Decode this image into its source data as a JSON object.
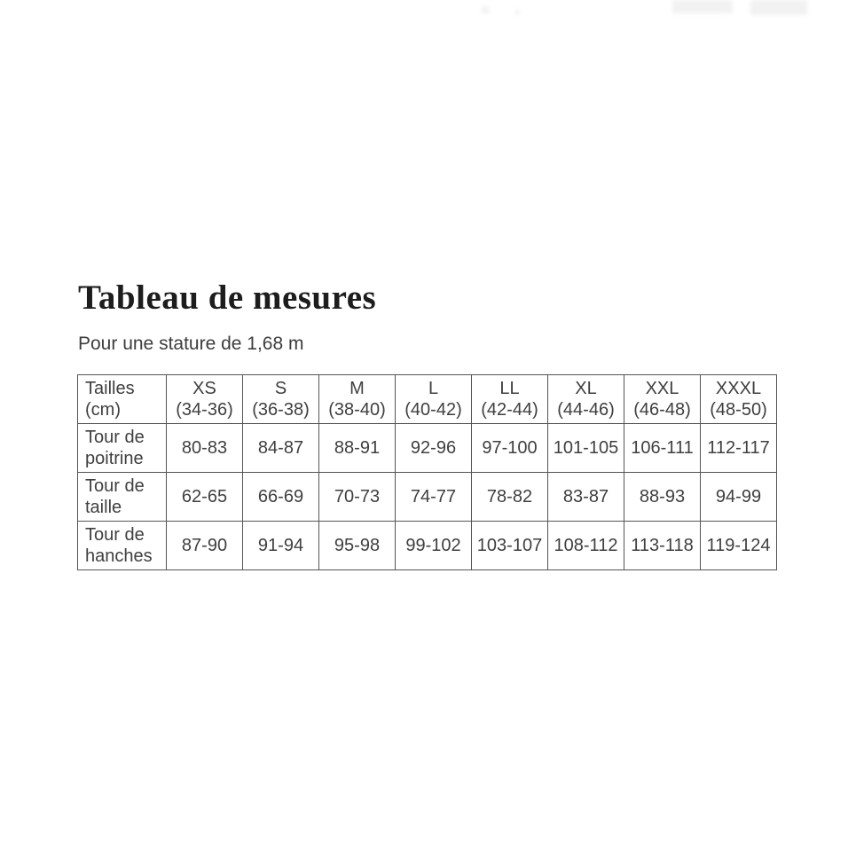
{
  "title": "Tableau de mesures",
  "subtitle": "Pour une stature de 1,68 m",
  "table": {
    "corner": {
      "line1": "Tailles",
      "line2": "(cm)"
    },
    "sizes": [
      {
        "label": "XS",
        "range": "(34-36)"
      },
      {
        "label": "S",
        "range": "(36-38)"
      },
      {
        "label": "M",
        "range": "(38-40)"
      },
      {
        "label": "L",
        "range": "(40-42)"
      },
      {
        "label": "LL",
        "range": "(42-44)"
      },
      {
        "label": "XL",
        "range": "(44-46)"
      },
      {
        "label": "XXL",
        "range": "(46-48)"
      },
      {
        "label": "XXXL",
        "range": "(48-50)"
      }
    ],
    "rows": [
      {
        "label1": "Tour de",
        "label2": "poitrine",
        "values": [
          "80-83",
          "84-87",
          "88-91",
          "92-96",
          "97-100",
          "101-105",
          "106-111",
          "112-117"
        ]
      },
      {
        "label1": "Tour de",
        "label2": "taille",
        "values": [
          "62-65",
          "66-69",
          "70-73",
          "74-77",
          "78-82",
          "83-87",
          "88-93",
          "94-99"
        ]
      },
      {
        "label1": "Tour de",
        "label2": "hanches",
        "values": [
          "87-90",
          "91-94",
          "95-98",
          "99-102",
          "103-107",
          "108-112",
          "113-118",
          "119-124"
        ]
      }
    ]
  },
  "colors": {
    "background": "#ffffff",
    "title_text": "#1d1d1d",
    "body_text": "#3f3f3f",
    "table_border": "#555555"
  },
  "chart_data": {
    "type": "table",
    "title": "Tableau de mesures",
    "subtitle": "Pour une stature de 1,68 m",
    "columns": [
      "Tailles (cm)",
      "XS (34-36)",
      "S (36-38)",
      "M (38-40)",
      "L (40-42)",
      "LL (42-44)",
      "XL (44-46)",
      "XXL (46-48)",
      "XXXL (48-50)"
    ],
    "rows": [
      [
        "Tour de poitrine",
        "80-83",
        "84-87",
        "88-91",
        "92-96",
        "97-100",
        "101-105",
        "106-111",
        "112-117"
      ],
      [
        "Tour de taille",
        "62-65",
        "66-69",
        "70-73",
        "74-77",
        "78-82",
        "83-87",
        "88-93",
        "94-99"
      ],
      [
        "Tour de hanches",
        "87-90",
        "91-94",
        "95-98",
        "99-102",
        "103-107",
        "108-112",
        "113-118",
        "119-124"
      ]
    ]
  }
}
